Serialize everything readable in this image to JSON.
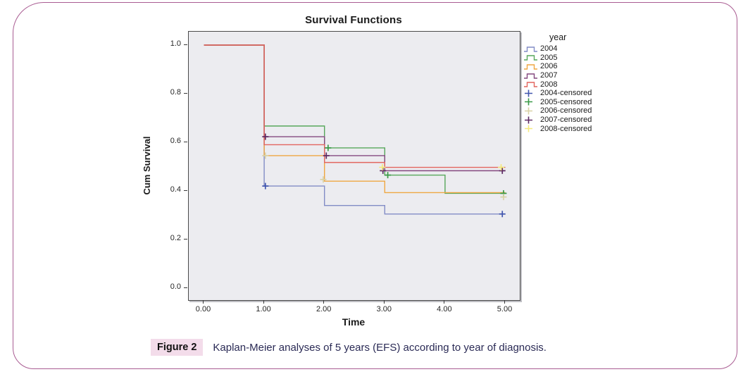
{
  "page": {
    "background": "#ffffff",
    "border_color": "#a95c92"
  },
  "caption": {
    "label": "Figure 2",
    "label_bg": "#f3dcea",
    "text": "Kaplan-Meier analyses of 5 years (EFS) according to year of diagnosis."
  },
  "chart_data": {
    "type": "line",
    "subtype": "kaplan-meier-step",
    "title": "Survival Functions",
    "xlabel": "Time",
    "ylabel": "Cum Survival",
    "xlim": [
      0,
      5
    ],
    "ylim": [
      0,
      1
    ],
    "grid": false,
    "plot_bg": "#ececf0",
    "xticks": [
      {
        "value": 0,
        "label": "0.00"
      },
      {
        "value": 1,
        "label": "1.00"
      },
      {
        "value": 2,
        "label": "2.00"
      },
      {
        "value": 3,
        "label": "3.00"
      },
      {
        "value": 4,
        "label": "4.00"
      },
      {
        "value": 5,
        "label": "5.00"
      }
    ],
    "yticks": [
      {
        "value": 0.0,
        "label": "0.0"
      },
      {
        "value": 0.2,
        "label": "0.2"
      },
      {
        "value": 0.4,
        "label": "0.4"
      },
      {
        "value": 0.6,
        "label": "0.6"
      },
      {
        "value": 0.8,
        "label": "0.8"
      },
      {
        "value": 1.0,
        "label": "1.0"
      }
    ],
    "legend": {
      "title": "year",
      "position": "right"
    },
    "series": [
      {
        "name": "2004",
        "color": "#828cc6",
        "points": [
          [
            0,
            1
          ],
          [
            1,
            1
          ],
          [
            1,
            0.42
          ],
          [
            2,
            0.42
          ],
          [
            2,
            0.34
          ],
          [
            3,
            0.34
          ],
          [
            3,
            0.305
          ],
          [
            5,
            0.305
          ]
        ]
      },
      {
        "name": "2005",
        "color": "#57a75b",
        "points": [
          [
            0,
            1
          ],
          [
            1,
            1
          ],
          [
            1,
            0.667
          ],
          [
            2,
            0.667
          ],
          [
            2,
            0.577
          ],
          [
            3,
            0.577
          ],
          [
            3,
            0.465
          ],
          [
            4,
            0.465
          ],
          [
            4,
            0.39
          ],
          [
            5,
            0.39
          ]
        ]
      },
      {
        "name": "2006",
        "color": "#efa743",
        "points": [
          [
            0,
            1
          ],
          [
            1,
            1
          ],
          [
            1,
            0.545
          ],
          [
            2,
            0.545
          ],
          [
            2,
            0.44
          ],
          [
            3,
            0.44
          ],
          [
            3,
            0.393
          ],
          [
            5,
            0.393
          ]
        ]
      },
      {
        "name": "2007",
        "color": "#84487f",
        "points": [
          [
            0,
            1
          ],
          [
            1,
            1
          ],
          [
            1,
            0.623
          ],
          [
            2,
            0.623
          ],
          [
            2,
            0.545
          ],
          [
            3,
            0.545
          ],
          [
            3,
            0.483
          ],
          [
            5,
            0.483
          ]
        ]
      },
      {
        "name": "2008",
        "color": "#e2655e",
        "points": [
          [
            0,
            1
          ],
          [
            1,
            1
          ],
          [
            1,
            0.59
          ],
          [
            2,
            0.59
          ],
          [
            2,
            0.517
          ],
          [
            3,
            0.517
          ],
          [
            3,
            0.497
          ],
          [
            5,
            0.497
          ]
        ]
      }
    ],
    "censored": [
      {
        "name": "2004-censored",
        "color": "#4055ae",
        "points": [
          [
            1.02,
            0.42
          ],
          [
            4.95,
            0.305
          ]
        ]
      },
      {
        "name": "2005-censored",
        "color": "#3a9a48",
        "points": [
          [
            2.06,
            0.577
          ],
          [
            3.05,
            0.465
          ],
          [
            4.97,
            0.39
          ]
        ]
      },
      {
        "name": "2006-censored",
        "color": "#d9d2a6",
        "points": [
          [
            1.02,
            0.545
          ],
          [
            1.98,
            0.447
          ],
          [
            4.97,
            0.375
          ]
        ]
      },
      {
        "name": "2007-censored",
        "color": "#5e2a63",
        "points": [
          [
            1.02,
            0.623
          ],
          [
            2.03,
            0.545
          ],
          [
            2.97,
            0.483
          ],
          [
            4.95,
            0.483
          ]
        ]
      },
      {
        "name": "2008-censored",
        "color": "#f5ea7c",
        "points": [
          [
            2.96,
            0.497
          ],
          [
            4.93,
            0.497
          ]
        ]
      }
    ]
  }
}
